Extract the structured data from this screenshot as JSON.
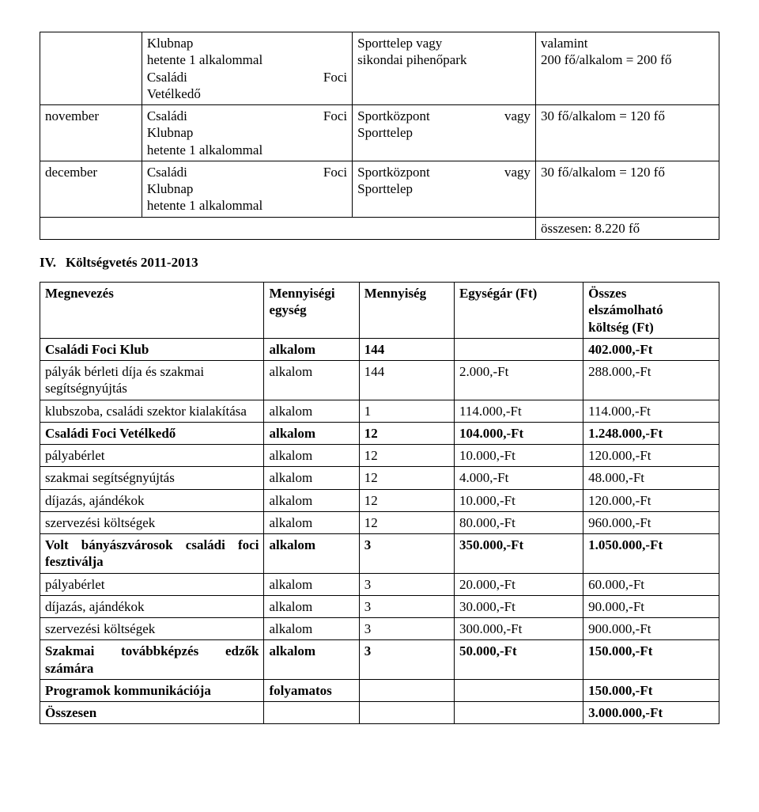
{
  "schedule": {
    "columns": [
      "col1",
      "col2",
      "col3",
      "col4"
    ],
    "rows": [
      {
        "month": "",
        "event_lines": [
          {
            "left": "Klubnap",
            "right": ""
          },
          {
            "left": "hetente 1 alkalommal",
            "right": ""
          },
          {
            "left": "Családi",
            "right": "Foci"
          },
          {
            "left": "Vetélkedő",
            "right": ""
          }
        ],
        "venue_lines": [
          "Sporttelep vagy",
          "sikondai pihenőpark"
        ],
        "cap_lines": [
          "valamint",
          "200 fő/alkalom = 200 fő"
        ]
      },
      {
        "month": "november",
        "event_lines": [
          {
            "left": "Családi",
            "right": "Foci"
          },
          {
            "left": "Klubnap",
            "right": ""
          },
          {
            "left": "hetente 1 alkalommal",
            "right": ""
          }
        ],
        "venue_lines": [
          {
            "left": "Sportközpont",
            "right": "vagy"
          },
          "Sporttelep"
        ],
        "cap_lines": [
          "30 fő/alkalom = 120 fő"
        ]
      },
      {
        "month": "december",
        "event_lines": [
          {
            "left": "Családi",
            "right": "Foci"
          },
          {
            "left": "Klubnap",
            "right": ""
          },
          {
            "left": "hetente 1 alkalommal",
            "right": ""
          }
        ],
        "venue_lines": [
          {
            "left": "Sportközpont",
            "right": "vagy"
          },
          "Sporttelep"
        ],
        "cap_lines": [
          "30 fő/alkalom = 120 fő"
        ]
      }
    ],
    "total_text": "összesen: 8.220 fő"
  },
  "section": {
    "roman": "IV.",
    "title": "Költségvetés 2011-2013"
  },
  "budget": {
    "headers": {
      "name": "Megnevezés",
      "unit_label_1": "Mennyiségi",
      "unit_label_2": "egység",
      "qty": "Mennyiség",
      "price": "Egységár (Ft)",
      "total_1": "Összes",
      "total_2": "elszámolható",
      "total_3": "költség (Ft)"
    },
    "rows": [
      {
        "name": "Családi Foci Klub",
        "unit": "alkalom",
        "qty": "144",
        "price": "",
        "total": "402.000,-Ft",
        "bold": true
      },
      {
        "name": "pályák bérleti díja és szakmai segítségnyújtás",
        "unit": "alkalom",
        "qty": "144",
        "price": "2.000,-Ft",
        "total": "288.000,-Ft",
        "bold": false
      },
      {
        "name": "klubszoba, családi szektor kialakítása",
        "just": true,
        "unit": "alkalom",
        "qty": "1",
        "price": "114.000,-Ft",
        "total": "114.000,-Ft",
        "bold": false
      },
      {
        "name": "Családi Foci Vetélkedő",
        "unit": "alkalom",
        "qty": "12",
        "price": "104.000,-Ft",
        "total": "1.248.000,-Ft",
        "bold": true
      },
      {
        "name": "pályabérlet",
        "unit": "alkalom",
        "qty": "12",
        "price": "10.000,-Ft",
        "total": "120.000,-Ft",
        "bold": false
      },
      {
        "name": "szakmai segítségnyújtás",
        "unit": "alkalom",
        "qty": "12",
        "price": "4.000,-Ft",
        "total": "48.000,-Ft",
        "bold": false
      },
      {
        "name": "díjazás, ajándékok",
        "unit": "alkalom",
        "qty": "12",
        "price": "10.000,-Ft",
        "total": "120.000,-Ft",
        "bold": false
      },
      {
        "name": "szervezési költségek",
        "unit": "alkalom",
        "qty": "12",
        "price": "80.000,-Ft",
        "total": "960.000,-Ft",
        "bold": false
      },
      {
        "name": "Volt bányászvárosok családi foci fesztiválja",
        "just": true,
        "unit": "alkalom",
        "qty": "3",
        "price": "350.000,-Ft",
        "total": "1.050.000,-Ft",
        "bold": true
      },
      {
        "name": "pályabérlet",
        "unit": "alkalom",
        "qty": "3",
        "price": "20.000,-Ft",
        "total": "60.000,-Ft",
        "bold": false
      },
      {
        "name": "díjazás, ajándékok",
        "unit": "alkalom",
        "qty": "3",
        "price": "30.000,-Ft",
        "total": "90.000,-Ft",
        "bold": false
      },
      {
        "name": "szervezési költségek",
        "unit": "alkalom",
        "qty": "3",
        "price": "300.000,-Ft",
        "total": "900.000,-Ft",
        "bold": false
      },
      {
        "name": "Szakmai továbbképzés edzők számára",
        "just": true,
        "unit": "alkalom",
        "qty": "3",
        "price": "50.000,-Ft",
        "total": "150.000,-Ft",
        "bold": true
      },
      {
        "name": "Programok kommunikációja",
        "unit": "folyamatos",
        "qty": "",
        "price": "",
        "total": "150.000,-Ft",
        "bold": true
      },
      {
        "name": "Összesen",
        "unit": "",
        "qty": "",
        "price": "",
        "total": "3.000.000,-Ft",
        "bold": true
      }
    ]
  },
  "style": {
    "font_family": "Times New Roman",
    "base_fontsize_pt": 13,
    "border_color": "#000000",
    "background_color": "#ffffff",
    "col_widths_schedule_pct": [
      15,
      31,
      27,
      27
    ],
    "col_widths_budget_pct": [
      33,
      14,
      14,
      19,
      20
    ]
  }
}
